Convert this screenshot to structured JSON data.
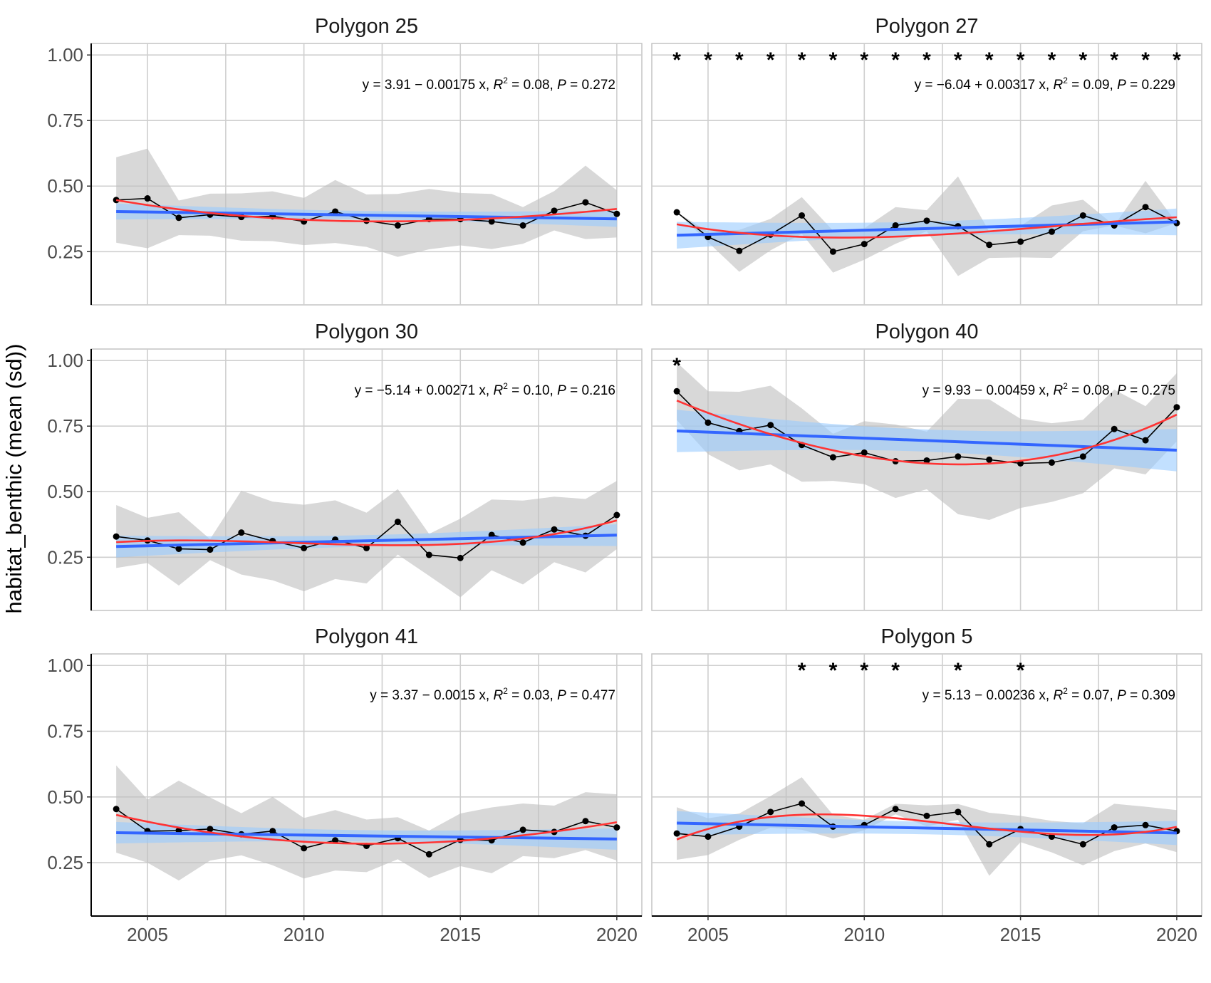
{
  "chart_data": {
    "type": "line",
    "ylabel": "habitat_benthic (mean (sd))",
    "xlabel": "",
    "xlim": [
      2003.2,
      2020.8
    ],
    "ylim": [
      0.047,
      1.044
    ],
    "x_ticks": [
      2005,
      2010,
      2015,
      2020
    ],
    "y_ticks": [
      0.25,
      0.5,
      0.75,
      1.0
    ],
    "y_tick_labels": [
      "0.25",
      "0.50",
      "0.75",
      "1.00"
    ],
    "grid": true,
    "colors": {
      "points": "#000000",
      "sd_ribbon": "#bebebe",
      "linear_fit": "#3366ff",
      "linear_ci": "#99ccff",
      "smooth": "#ff3333"
    },
    "years": [
      2004,
      2005,
      2006,
      2007,
      2008,
      2009,
      2010,
      2011,
      2012,
      2013,
      2014,
      2015,
      2016,
      2017,
      2018,
      2019,
      2020
    ],
    "panels": [
      {
        "title": "Polygon 25",
        "eq": "y = 3.91 − 0.00175 x",
        "r2": "0.08",
        "p": "0.272",
        "intercept": 3.91,
        "slope": -0.00175,
        "mean": [
          0.447,
          0.453,
          0.379,
          0.391,
          0.382,
          0.385,
          0.365,
          0.403,
          0.368,
          0.35,
          0.374,
          0.374,
          0.365,
          0.35,
          0.406,
          0.438,
          0.394
        ],
        "sd": [
          0.163,
          0.19,
          0.066,
          0.08,
          0.09,
          0.095,
          0.09,
          0.12,
          0.1,
          0.12,
          0.115,
          0.1,
          0.105,
          0.07,
          0.075,
          0.14,
          0.09
        ],
        "stars": []
      },
      {
        "title": "Polygon 27",
        "eq": "y = −6.04 + 0.00317 x",
        "r2": "0.09",
        "p": "0.229",
        "intercept": -6.04,
        "slope": 0.00317,
        "mean": [
          0.4,
          0.306,
          0.253,
          0.315,
          0.388,
          0.25,
          0.279,
          0.35,
          0.368,
          0.347,
          0.276,
          0.288,
          0.326,
          0.388,
          0.35,
          0.42,
          0.359
        ],
        "sd": [
          0,
          0.02,
          0.08,
          0.06,
          0.07,
          0.08,
          0.06,
          0.07,
          0.04,
          0.19,
          0.05,
          0.06,
          0.1,
          0.06,
          0,
          0.1,
          0
        ],
        "stars": [
          2004,
          2005,
          2006,
          2007,
          2008,
          2009,
          2010,
          2011,
          2012,
          2013,
          2014,
          2015,
          2016,
          2017,
          2018,
          2019,
          2020
        ]
      },
      {
        "title": "Polygon 30",
        "eq": "y = −5.14 + 0.00271 x",
        "r2": "0.10",
        "p": "0.216",
        "intercept": -5.14,
        "slope": 0.00271,
        "mean": [
          0.329,
          0.314,
          0.282,
          0.279,
          0.344,
          0.312,
          0.285,
          0.317,
          0.285,
          0.385,
          0.259,
          0.247,
          0.335,
          0.306,
          0.356,
          0.332,
          0.411
        ],
        "sd": [
          0.12,
          0.086,
          0.14,
          0.04,
          0.16,
          0.15,
          0.165,
          0.15,
          0.135,
          0.125,
          0.08,
          0.15,
          0.135,
          0.16,
          0.125,
          0.14,
          0.13
        ],
        "stars": []
      },
      {
        "title": "Polygon 40",
        "eq": "y = 9.93 − 0.00459 x",
        "r2": "0.08",
        "p": "0.275",
        "intercept": 9.93,
        "slope": -0.00459,
        "mean": [
          0.883,
          0.763,
          0.731,
          0.754,
          0.678,
          0.631,
          0.649,
          0.616,
          0.619,
          0.634,
          0.622,
          0.608,
          0.611,
          0.634,
          0.739,
          0.696,
          0.822
        ],
        "sd": [
          0.11,
          0.12,
          0.15,
          0.15,
          0.14,
          0.09,
          0.12,
          0.14,
          0.11,
          0.22,
          0.23,
          0.17,
          0.15,
          0.14,
          0.15,
          0.13,
          0.13
        ],
        "stars": [
          2004
        ]
      },
      {
        "title": "Polygon 41",
        "eq": "y = 3.37 − 0.0015 x",
        "r2": "0.03",
        "p": "0.477",
        "intercept": 3.37,
        "slope": -0.0015,
        "mean": [
          0.454,
          0.37,
          0.372,
          0.378,
          0.358,
          0.37,
          0.305,
          0.335,
          0.314,
          0.343,
          0.282,
          0.337,
          0.335,
          0.375,
          0.367,
          0.408,
          0.384
        ],
        "sd": [
          0.166,
          0.12,
          0.19,
          0.12,
          0.08,
          0.13,
          0.115,
          0.115,
          0.1,
          0.08,
          0.09,
          0.1,
          0.125,
          0.1,
          0.1,
          0.11,
          0.126
        ],
        "stars": []
      },
      {
        "title": "Polygon 5",
        "eq": "y = 5.13 − 0.00236 x",
        "r2": "0.07",
        "p": "0.309",
        "intercept": 5.13,
        "slope": -0.00236,
        "mean": [
          0.361,
          0.349,
          0.387,
          0.443,
          0.475,
          0.387,
          0.393,
          0.454,
          0.428,
          0.443,
          0.32,
          0.378,
          0.349,
          0.32,
          0.384,
          0.393,
          0.37
        ],
        "sd": [
          0.1,
          0.07,
          0.05,
          0.06,
          0.1,
          0.045,
          0.02,
          0.02,
          0.04,
          0.03,
          0.12,
          0.05,
          0.06,
          0.08,
          0.09,
          0.07,
          0.08
        ],
        "stars": [
          2008,
          2009,
          2010,
          2011,
          2013,
          2015
        ]
      }
    ],
    "annotation_labels": {
      "r2_prefix": "R",
      "r2_sup": "2",
      "p_prefix": "P",
      "equals": " = ",
      "sep": ", "
    },
    "star_symbol": "*"
  }
}
